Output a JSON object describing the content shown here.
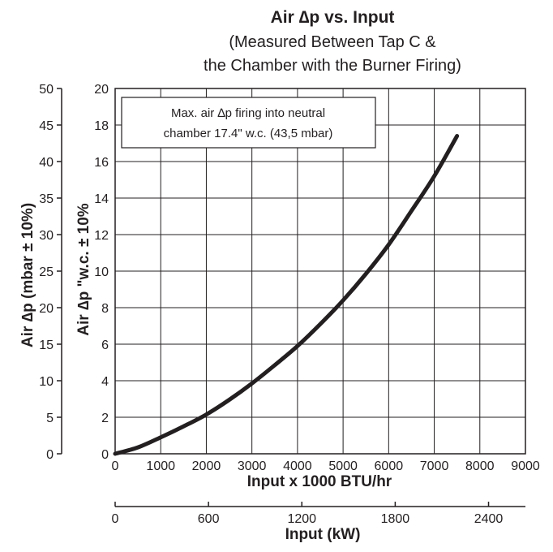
{
  "chart_data": {
    "type": "line",
    "title": "Air ∆p vs. Input",
    "subtitle_lines": [
      "(Measured Between Tap C &",
      "the Chamber with the Burner Firing)"
    ],
    "xlabel": "Input x 1000 BTU/hr",
    "xlabel_secondary": "Input (kW)",
    "ylabel": "Air ∆p \"w.c. ± 10%",
    "ylabel_secondary": "Air ∆p (mbar ± 10%)",
    "xlim": [
      0,
      9000
    ],
    "ylim": [
      0,
      20
    ],
    "xlim_secondary": [
      0,
      2637
    ],
    "ylim_secondary": [
      0,
      50
    ],
    "x_ticks": [
      "0",
      "1000",
      "2000",
      "3000",
      "4000",
      "5000",
      "6000",
      "7000",
      "8000",
      "9000"
    ],
    "y_ticks": [
      "0",
      "2",
      "4",
      "6",
      "8",
      "10",
      "12",
      "14",
      "16",
      "18",
      "20"
    ],
    "x_ticks_secondary": [
      "0",
      "600",
      "1200",
      "1800",
      "2400"
    ],
    "y_ticks_secondary": [
      "0",
      "5",
      "10",
      "15",
      "20",
      "25",
      "30",
      "35",
      "40",
      "45",
      "50"
    ],
    "grid": true,
    "annotation_lines": [
      "Max. air ∆p firing into neutral",
      "chamber 17.4\" w.c. (43,5 mbar)"
    ],
    "series": [
      {
        "x": [
          0,
          500,
          1000,
          1500,
          2000,
          2500,
          3000,
          3500,
          4000,
          4500,
          5000,
          5500,
          6000,
          6500,
          7000,
          7500
        ],
        "values": [
          0,
          0.35,
          0.9,
          1.5,
          2.15,
          2.95,
          3.85,
          4.85,
          5.9,
          7.1,
          8.4,
          9.85,
          11.45,
          13.3,
          15.2,
          17.4
        ]
      }
    ]
  }
}
